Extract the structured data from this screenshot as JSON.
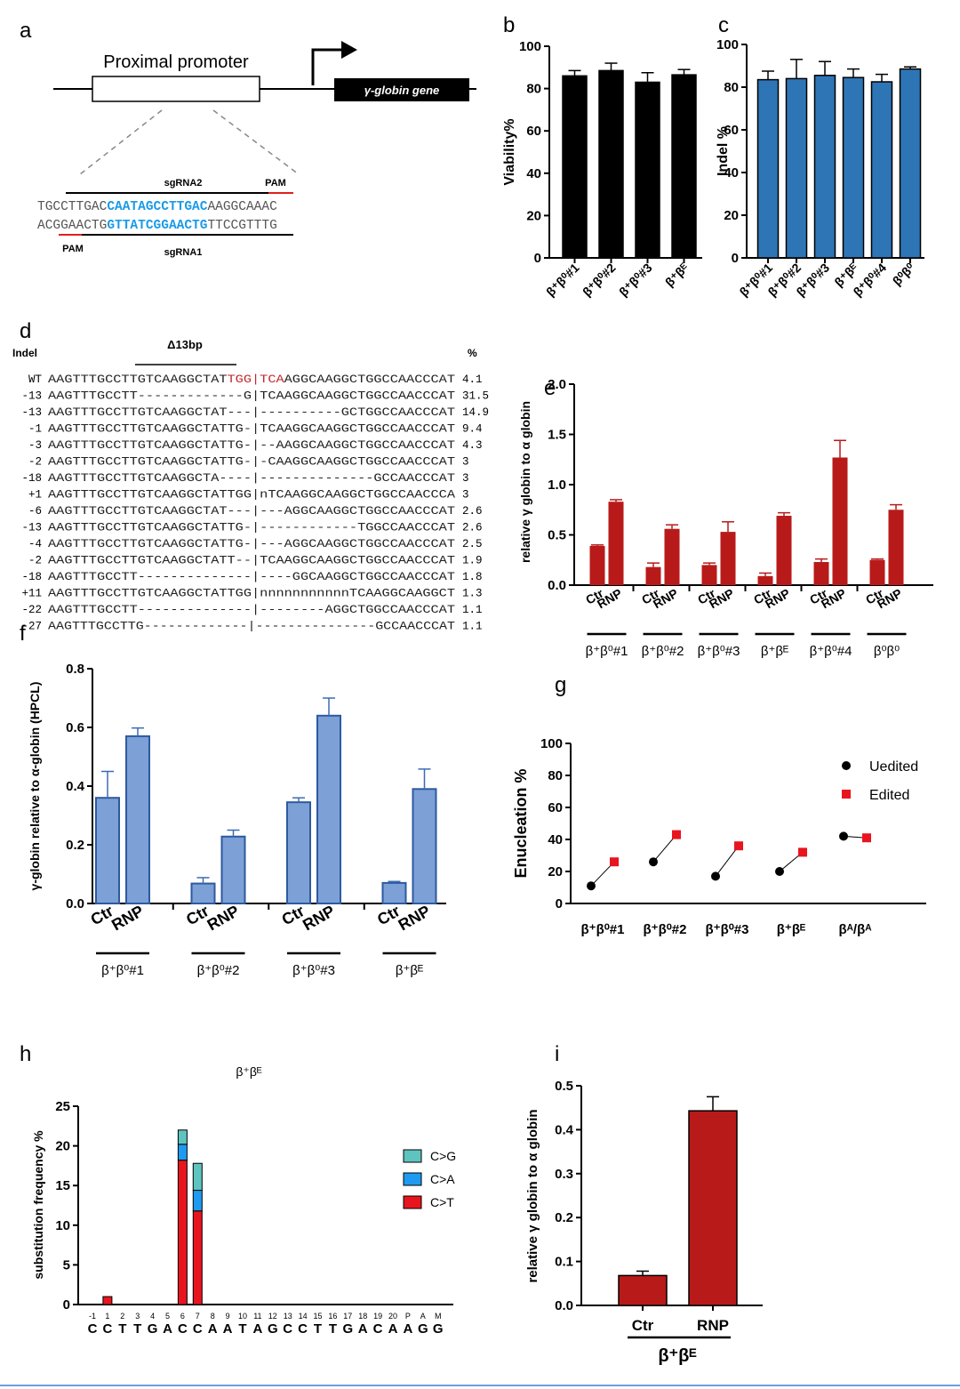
{
  "panel_letters": [
    "a",
    "b",
    "c",
    "d",
    "e",
    "f",
    "g",
    "h",
    "i"
  ],
  "panel_a": {
    "promoter_label": "Proximal promoter",
    "gene_label": "γ-globin gene",
    "sgRNA2_label": "sgRNA2",
    "sgRNA1_label": "sgRNA1",
    "pam_top": "PAM",
    "pam_bottom": "PAM",
    "top_strand": {
      "pre": "TGCCTTGAC",
      "guide": "CAATAGCCTTGAC",
      "post": "AAGGCAAAC"
    },
    "bottom_strand": {
      "pre": "ACGGAACTG",
      "guide": "GTTATCGGAACTG",
      "post": "TTCCGTTTG"
    }
  },
  "panel_d": {
    "col_indel": "Indel",
    "col_percent": "%",
    "deletion_label": "Δ13bp",
    "rows": [
      {
        "indel": "WT",
        "pre": "AAGTTTGCCTTGTCAAGGCTAT",
        "red": "TGG|TCA",
        "post": "AGGCAAGGCTGGCCAACCCAT",
        "pct": "4.1"
      },
      {
        "indel": "-13",
        "pre": "AAGTTTGCCTT-------------G|TCAAGGCAAGGCTGGCCAACCCAT",
        "red": "",
        "post": "",
        "pct": "31.5"
      },
      {
        "indel": "-13",
        "pre": "AAGTTTGCCTTGTCAAGGCTAT---|----------GCTGGCCAACCCAT",
        "red": "",
        "post": "",
        "pct": "14.9"
      },
      {
        "indel": "-1",
        "pre": "AAGTTTGCCTTGTCAAGGCTATTG-|TCAAGGCAAGGCTGGCCAACCCAT",
        "red": "",
        "post": "",
        "pct": "9.4"
      },
      {
        "indel": "-3",
        "pre": "AAGTTTGCCTTGTCAAGGCTATTG-|--AAGGCAAGGCTGGCCAACCCAT",
        "red": "",
        "post": "",
        "pct": "4.3"
      },
      {
        "indel": "-2",
        "pre": "AAGTTTGCCTTGTCAAGGCTATTG-|-CAAGGCAAGGCTGGCCAACCCAT",
        "red": "",
        "post": "",
        "pct": "3"
      },
      {
        "indel": "-18",
        "pre": "AAGTTTGCCTTGTCAAGGCTA----|--------------GCCAACCCAT",
        "red": "",
        "post": "",
        "pct": "3"
      },
      {
        "indel": "+1",
        "pre": "AAGTTTGCCTTGTCAAGGCTATTGG|nTCAAGGCAAGGCTGGCCAACCCA",
        "red": "",
        "post": "",
        "pct": "3"
      },
      {
        "indel": "-6",
        "pre": "AAGTTTGCCTTGTCAAGGCTAT---|---AGGCAAGGCTGGCCAACCCAT",
        "red": "",
        "post": "",
        "pct": "2.6"
      },
      {
        "indel": "-13",
        "pre": "AAGTTTGCCTTGTCAAGGCTATTG-|------------TGGCCAACCCAT",
        "red": "",
        "post": "",
        "pct": "2.6"
      },
      {
        "indel": "-4",
        "pre": "AAGTTTGCCTTGTCAAGGCTATTG-|---AGGCAAGGCTGGCCAACCCAT",
        "red": "",
        "post": "",
        "pct": "2.5"
      },
      {
        "indel": "-2",
        "pre": "AAGTTTGCCTTGTCAAGGCTATT--|TCAAGGCAAGGCTGGCCAACCCAT",
        "red": "",
        "post": "",
        "pct": "1.9"
      },
      {
        "indel": "-18",
        "pre": "AAGTTTGCCTT--------------|----GGCAAGGCTGGCCAACCCAT",
        "red": "",
        "post": "",
        "pct": "1.8"
      },
      {
        "indel": "+11",
        "pre": "AAGTTTGCCTTGTCAAGGCTATTGG|nnnnnnnnnnnTCAAGGCAAGGCT",
        "red": "",
        "post": "",
        "pct": "1.3"
      },
      {
        "indel": "-22",
        "pre": "AAGTTTGCCTT--------------|--------AGGCTGGCCAACCCAT",
        "red": "",
        "post": "",
        "pct": "1.1"
      },
      {
        "indel": "-27",
        "pre": "AAGTTTGCCTTG-------------|---------------GCCAACCCAT",
        "red": "",
        "post": "",
        "pct": "1.1"
      }
    ]
  },
  "chart_data": [
    {
      "id": "b",
      "type": "bar",
      "title": "",
      "ylabel": "Viability%",
      "ylim": [
        0,
        100
      ],
      "yticks": [
        0,
        20,
        40,
        60,
        80,
        100
      ],
      "categories": [
        "β⁺β⁰#1",
        "β⁺β⁰#2",
        "β⁺β⁰#3",
        "β⁺βᴱ"
      ],
      "values": [
        86,
        88.5,
        83,
        86.5
      ],
      "errors": [
        2.5,
        3.5,
        4.5,
        2.5
      ],
      "color": "#000000"
    },
    {
      "id": "c",
      "type": "bar",
      "title": "",
      "ylabel": "Indel %",
      "ylim": [
        0,
        100
      ],
      "yticks": [
        0,
        20,
        40,
        60,
        80,
        100
      ],
      "categories": [
        "β⁺β⁰#1",
        "β⁺β⁰#2",
        "β⁺β⁰#3",
        "β⁺βᴱ",
        "β⁺β⁰#4",
        "β⁰β⁰"
      ],
      "values": [
        83.5,
        84,
        85.5,
        84.5,
        82.5,
        88.5
      ],
      "errors": [
        4,
        9,
        6.5,
        4,
        3.5,
        1
      ],
      "color": "#2e75b6"
    },
    {
      "id": "e",
      "type": "bar",
      "title": "",
      "ylabel": "relative γ globin to α globin",
      "ylim": [
        0,
        2.0
      ],
      "yticks": [
        0.0,
        0.5,
        1.0,
        1.5,
        2.0
      ],
      "groups": [
        "β⁺β⁰#1",
        "β⁺β⁰#2",
        "β⁺β⁰#3",
        "β⁺βᴱ",
        "β⁺β⁰#4",
        "β⁰β⁰"
      ],
      "bar_labels": [
        "Ctr",
        "RNP"
      ],
      "series": [
        {
          "name": "Ctr",
          "values": [
            0.39,
            0.18,
            0.2,
            0.09,
            0.23,
            0.25
          ],
          "errors": [
            0.01,
            0.04,
            0.02,
            0.03,
            0.03,
            0.01
          ]
        },
        {
          "name": "RNP",
          "values": [
            0.83,
            0.56,
            0.53,
            0.69,
            1.27,
            0.75
          ],
          "errors": [
            0.02,
            0.04,
            0.1,
            0.03,
            0.17,
            0.05
          ]
        }
      ],
      "color": "#b81a1a"
    },
    {
      "id": "f",
      "type": "bar",
      "title": "",
      "ylabel": "γ-globin relative to α-globin (HPCL)",
      "ylim": [
        0,
        0.8
      ],
      "yticks": [
        0.0,
        0.2,
        0.4,
        0.6,
        0.8
      ],
      "groups": [
        "β⁺β⁰#1",
        "β⁺β⁰#2",
        "β⁺β⁰#3",
        "β⁺βᴱ"
      ],
      "bar_labels": [
        "Ctr",
        "RNP"
      ],
      "series": [
        {
          "name": "Ctr",
          "values": [
            0.36,
            0.068,
            0.345,
            0.07
          ],
          "errors": [
            0.09,
            0.02,
            0.015,
            0.005
          ]
        },
        {
          "name": "RNP",
          "values": [
            0.57,
            0.228,
            0.64,
            0.39
          ],
          "errors": [
            0.028,
            0.022,
            0.06,
            0.068
          ]
        }
      ],
      "color": "#7da0d6"
    },
    {
      "id": "g",
      "type": "scatter",
      "title": "",
      "ylabel": "Enucleation %",
      "ylim": [
        0,
        100
      ],
      "yticks": [
        0,
        20,
        40,
        60,
        80,
        100
      ],
      "categories": [
        "β⁺β⁰#1",
        "β⁺β⁰#2",
        "β⁺β⁰#3",
        "β⁺βᴱ",
        "βᴬ/βᴬ"
      ],
      "series": [
        {
          "name": "Uedited",
          "values": [
            11,
            26,
            17,
            20,
            42
          ]
        },
        {
          "name": "Edited",
          "values": [
            26,
            43,
            36,
            32,
            41
          ]
        }
      ],
      "legend": "top-right"
    },
    {
      "id": "h",
      "type": "bar",
      "title": "β⁺βᴱ",
      "ylabel": "substitution frequency %",
      "ylim": [
        0,
        25
      ],
      "yticks": [
        0,
        5,
        10,
        15,
        20,
        25
      ],
      "positions": [
        "-1",
        "1",
        "2",
        "3",
        "4",
        "5",
        "6",
        "7",
        "8",
        "9",
        "10",
        "11",
        "12",
        "13",
        "14",
        "15",
        "16",
        "17",
        "18",
        "19",
        "20",
        "P",
        "A",
        "M"
      ],
      "bases": [
        "C",
        "C",
        "T",
        "T",
        "G",
        "A",
        "C",
        "C",
        "A",
        "A",
        "T",
        "A",
        "G",
        "C",
        "C",
        "T",
        "T",
        "G",
        "A",
        "C",
        "A",
        "A",
        "G",
        "G"
      ],
      "series": [
        {
          "name": "C>T",
          "values": [
            0,
            1,
            0,
            0,
            0,
            0,
            18.2,
            11.8,
            0,
            0,
            0,
            0,
            0,
            0,
            0,
            0,
            0,
            0,
            0,
            0,
            0,
            0,
            0,
            0
          ],
          "color": "#e8151f"
        },
        {
          "name": "C>A",
          "values": [
            0,
            0,
            0,
            0,
            0,
            0,
            2,
            2.6,
            0,
            0,
            0,
            0,
            0,
            0,
            0,
            0,
            0,
            0,
            0,
            0,
            0,
            0,
            0,
            0
          ],
          "color": "#1e9bf0"
        },
        {
          "name": "C>G",
          "values": [
            0,
            0,
            0,
            0,
            0,
            0,
            1.8,
            3.4,
            0,
            0,
            0,
            0,
            0,
            0,
            0,
            0,
            0,
            0,
            0,
            0,
            0,
            0,
            0,
            0
          ],
          "color": "#5ec4bf"
        }
      ],
      "legend_order": [
        "C>G",
        "C>A",
        "C>T"
      ],
      "legend": "right"
    },
    {
      "id": "i",
      "type": "bar",
      "title": "",
      "ylabel": "relative γ globin to α globin",
      "ylim": [
        0,
        0.5
      ],
      "yticks": [
        0.0,
        0.1,
        0.2,
        0.3,
        0.4,
        0.5
      ],
      "categories": [
        "Ctr",
        "RNP"
      ],
      "values": [
        0.068,
        0.443
      ],
      "errors": [
        0.01,
        0.032
      ],
      "group_label": "β⁺βᴱ",
      "color": "#b81a1a"
    }
  ]
}
